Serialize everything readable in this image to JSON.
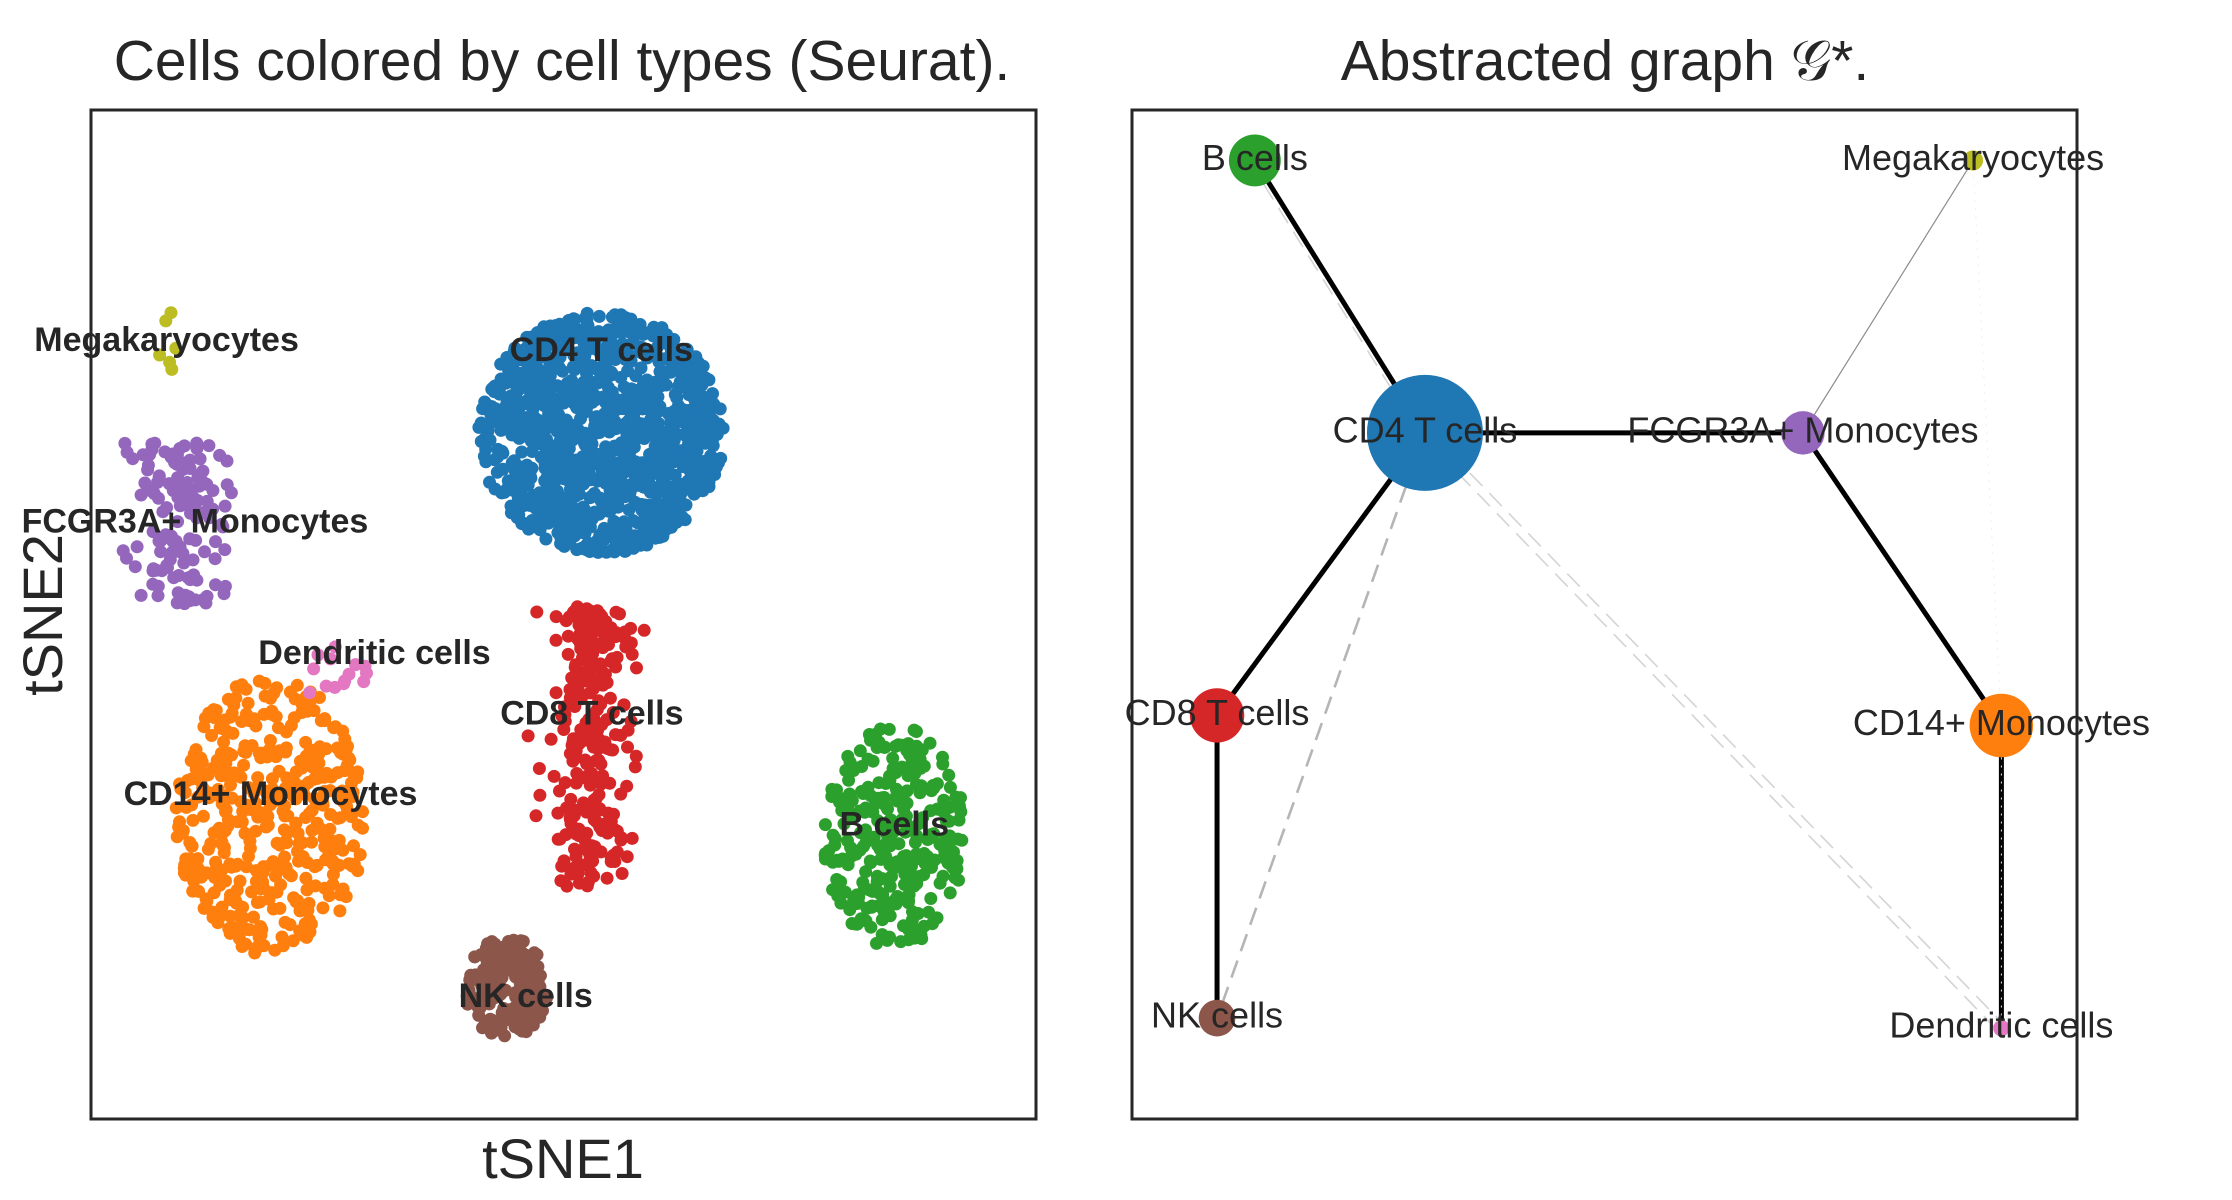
{
  "colors": {
    "CD4 T cells": "#1f77b4",
    "CD14+ Monocytes": "#ff7f0e",
    "B cells": "#2ca02c",
    "CD8 T cells": "#d62728",
    "FCGR3A+ Monocytes": "#9467bd",
    "NK cells": "#8c564b",
    "Dendritic cells": "#e377c2",
    "Megakaryocytes": "#bcbd22"
  },
  "chart_data": [
    {
      "type": "scatter",
      "title": "Cells colored by cell types (Seurat).",
      "xlabel": "tSNE1",
      "ylabel": "tSNE2",
      "xlim": [
        0,
        100
      ],
      "ylim": [
        0,
        100
      ],
      "grid": false,
      "ticks": false,
      "clusters": [
        {
          "name": "CD4 T cells",
          "label": "CD4 T cells",
          "color": "#1f77b4",
          "center": [
            54,
            68
          ],
          "spread": [
            13,
            12
          ],
          "shape": "disc",
          "count": 1150
        },
        {
          "name": "CD8 T cells",
          "label": "CD8 T cells",
          "color": "#d62728",
          "center": [
            53,
            37
          ],
          "spread": [
            4,
            14
          ],
          "shape": "column",
          "count": 260
        },
        {
          "name": "NK cells",
          "label": "NK cells",
          "color": "#8c564b",
          "center": [
            44,
            13
          ],
          "spread": [
            4.5,
            5
          ],
          "shape": "disc",
          "count": 170
        },
        {
          "name": "B cells",
          "label": "B cells",
          "color": "#2ca02c",
          "center": [
            85,
            28
          ],
          "spread": [
            7.5,
            11
          ],
          "shape": "disc",
          "count": 300
        },
        {
          "name": "CD14+ Monocytes",
          "label": "CD14+ Monocytes",
          "color": "#ff7f0e",
          "center": [
            19,
            30
          ],
          "spread": [
            10,
            14
          ],
          "shape": "disc",
          "count": 420
        },
        {
          "name": "FCGR3A+ Monocytes",
          "label": "FCGR3A+ Monocytes",
          "color": "#9467bd",
          "center": [
            10,
            59
          ],
          "spread": [
            5,
            8
          ],
          "shape": "column",
          "count": 140
        },
        {
          "name": "Dendritic cells",
          "label": "Dendritic cells",
          "color": "#e377c2",
          "center": [
            27,
            44
          ],
          "spread": [
            5,
            3
          ],
          "shape": "disc",
          "count": 14
        },
        {
          "name": "Megakaryocytes",
          "label": "Megakaryocytes",
          "color": "#bcbd22",
          "center": [
            8,
            77
          ],
          "spread": [
            1,
            3
          ],
          "shape": "column",
          "count": 6
        }
      ],
      "cluster_label_positions": {
        "CD4 T cells": [
          54,
          76
        ],
        "CD8 T cells": [
          53,
          40
        ],
        "NK cells": [
          46,
          12
        ],
        "B cells": [
          85,
          29
        ],
        "CD14+ Monocytes": [
          19,
          32
        ],
        "FCGR3A+ Monocytes": [
          11,
          59
        ],
        "Dendritic cells": [
          30,
          46
        ],
        "Megakaryocytes": [
          8,
          77
        ]
      }
    },
    {
      "type": "graph",
      "title": "Abstracted graph 𝒢*.",
      "xlim": [
        0,
        100
      ],
      "ylim": [
        0,
        100
      ],
      "nodes": [
        {
          "name": "B cells",
          "label": "B cells",
          "pos": [
            13,
            95
          ],
          "size": 0.2
        },
        {
          "name": "Megakaryocytes",
          "label": "Megakaryocytes",
          "pos": [
            89,
            95
          ],
          "size": 0.03
        },
        {
          "name": "CD4 T cells",
          "label": "CD4 T cells",
          "pos": [
            31,
            68
          ],
          "size": 1.0
        },
        {
          "name": "FCGR3A+ Monocytes",
          "label": "FCGR3A+ Monocytes",
          "pos": [
            71,
            68
          ],
          "size": 0.14
        },
        {
          "name": "CD8 T cells",
          "label": "CD8 T cells",
          "pos": [
            9,
            40
          ],
          "size": 0.22
        },
        {
          "name": "CD14+ Monocytes",
          "label": "CD14+ Monocytes",
          "pos": [
            92,
            39
          ],
          "size": 0.3
        },
        {
          "name": "NK cells",
          "label": "NK cells",
          "pos": [
            9,
            10
          ],
          "size": 0.1
        },
        {
          "name": "Dendritic cells",
          "label": "Dendritic cells",
          "pos": [
            92,
            9
          ],
          "size": 0.02
        }
      ],
      "edges": [
        {
          "source": "B cells",
          "target": "CD4 T cells",
          "style": "solid",
          "weight": 1.0
        },
        {
          "source": "CD4 T cells",
          "target": "FCGR3A+ Monocytes",
          "style": "solid",
          "weight": 1.0
        },
        {
          "source": "CD4 T cells",
          "target": "CD8 T cells",
          "style": "solid",
          "weight": 1.0
        },
        {
          "source": "CD8 T cells",
          "target": "NK cells",
          "style": "solid",
          "weight": 1.0
        },
        {
          "source": "FCGR3A+ Monocytes",
          "target": "CD14+ Monocytes",
          "style": "solid",
          "weight": 1.0
        },
        {
          "source": "CD14+ Monocytes",
          "target": "Dendritic cells",
          "style": "solid",
          "weight": 1.0
        },
        {
          "source": "FCGR3A+ Monocytes",
          "target": "Megakaryocytes",
          "style": "thin",
          "weight": 0.25
        },
        {
          "source": "CD4 T cells",
          "target": "NK cells",
          "style": "dashed",
          "weight": 0.5
        },
        {
          "source": "B cells",
          "target": "CD4 T cells",
          "style": "dashed",
          "weight": 0.2
        },
        {
          "source": "CD4 T cells",
          "target": "Dendritic cells",
          "style": "dashed",
          "weight": 0.2
        },
        {
          "source": "CD4 T cells",
          "target": "Dendritic cells",
          "style": "dashed",
          "weight": 0.15
        },
        {
          "source": "Megakaryocytes",
          "target": "CD14+ Monocytes",
          "style": "dotted",
          "weight": 0.05
        },
        {
          "source": "CD14+ Monocytes",
          "target": "Dendritic cells",
          "style": "dotted",
          "weight": 0.05
        }
      ]
    }
  ]
}
